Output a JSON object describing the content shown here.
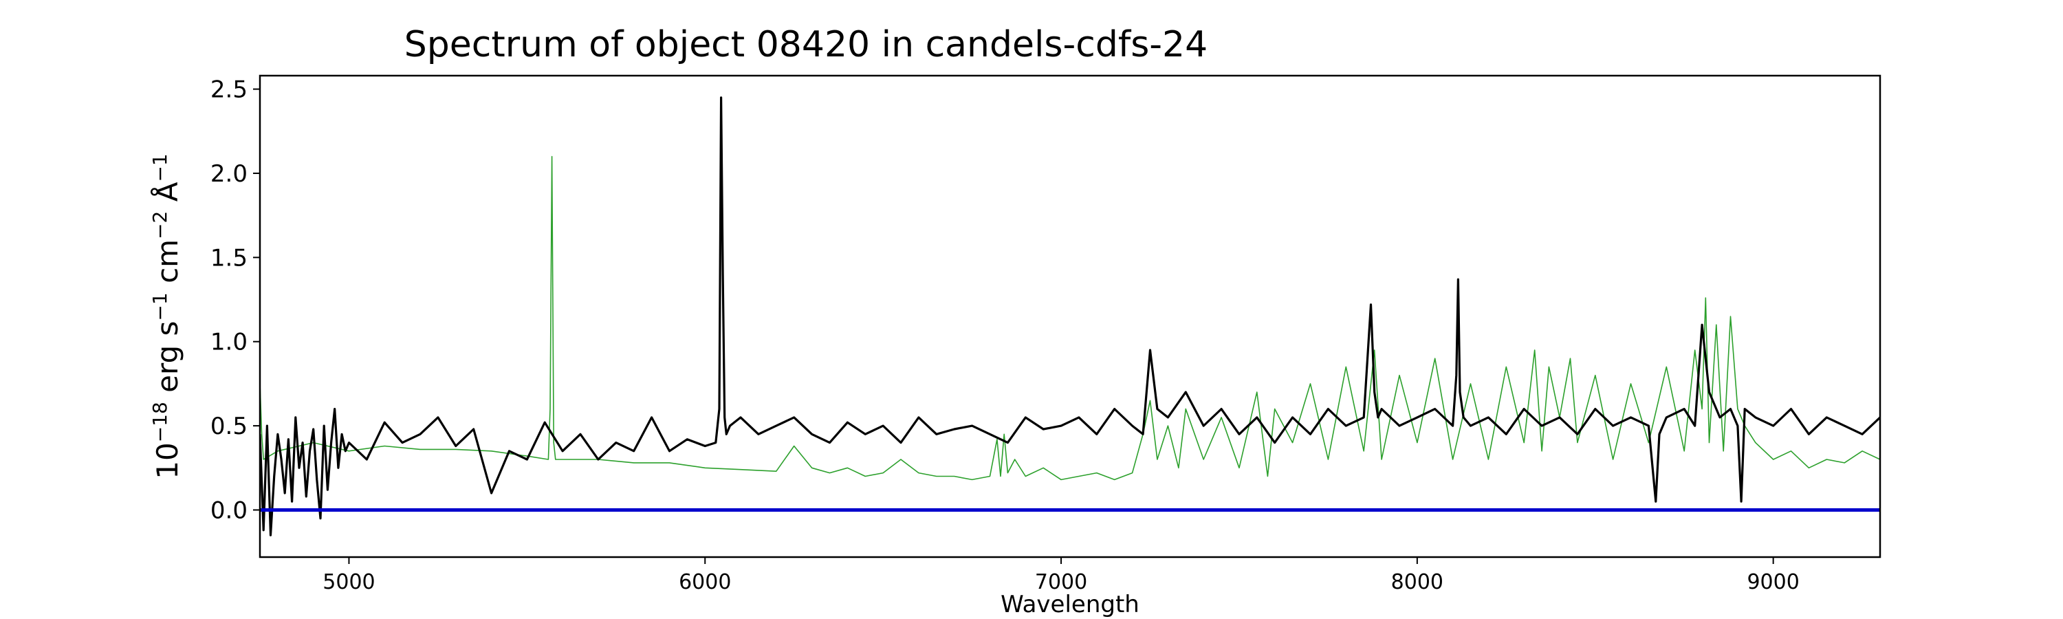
{
  "chart_data": {
    "type": "line",
    "title": "Spectrum of object 08420 in candels-cdfs-24",
    "xlabel": "Wavelength",
    "ylabel_prefix": "10",
    "ylabel_exp": "−18",
    "ylabel_units": [
      {
        "text": " erg s",
        "sup": "−1"
      },
      {
        "text": " cm",
        "sup": "−2"
      },
      {
        "text": " Å",
        "sup": "−1"
      }
    ],
    "xlim": [
      4750,
      9300
    ],
    "ylim": [
      -0.28,
      2.58
    ],
    "xticks": [
      5000,
      6000,
      7000,
      8000,
      9000
    ],
    "xtick_labels": [
      "5000",
      "6000",
      "7000",
      "8000",
      "9000"
    ],
    "yticks": [
      0.0,
      0.5,
      1.0,
      1.5,
      2.0,
      2.5
    ],
    "ytick_labels": [
      "0.0",
      "0.5",
      "1.0",
      "1.5",
      "2.0",
      "2.5"
    ],
    "grid": false,
    "series": [
      {
        "color": "#000000",
        "x": [
          4750,
          4760,
          4770,
          4780,
          4790,
          4800,
          4810,
          4820,
          4830,
          4840,
          4850,
          4860,
          4870,
          4880,
          4890,
          4900,
          4910,
          4920,
          4930,
          4940,
          4950,
          4960,
          4970,
          4980,
          4990,
          5000,
          5050,
          5100,
          5150,
          5200,
          5250,
          5300,
          5350,
          5400,
          5450,
          5500,
          5550,
          5600,
          5650,
          5700,
          5750,
          5800,
          5850,
          5900,
          5950,
          6000,
          6030,
          6040,
          6045,
          6050,
          6055,
          6060,
          6070,
          6100,
          6150,
          6200,
          6250,
          6300,
          6350,
          6400,
          6450,
          6500,
          6550,
          6600,
          6650,
          6700,
          6750,
          6800,
          6850,
          6900,
          6950,
          7000,
          7050,
          7100,
          7150,
          7200,
          7230,
          7250,
          7270,
          7300,
          7350,
          7400,
          7450,
          7500,
          7550,
          7600,
          7650,
          7700,
          7750,
          7800,
          7850,
          7870,
          7880,
          7890,
          7900,
          7950,
          8000,
          8050,
          8100,
          8110,
          8115,
          8120,
          8130,
          8150,
          8200,
          8250,
          8300,
          8350,
          8400,
          8450,
          8500,
          8550,
          8600,
          8650,
          8670,
          8680,
          8700,
          8750,
          8780,
          8800,
          8820,
          8850,
          8880,
          8900,
          8910,
          8920,
          8950,
          9000,
          9050,
          9100,
          9150,
          9200,
          9250,
          9300
        ],
        "y": [
          0.45,
          -0.12,
          0.5,
          -0.15,
          0.2,
          0.45,
          0.3,
          0.1,
          0.42,
          0.05,
          0.55,
          0.25,
          0.4,
          0.08,
          0.35,
          0.48,
          0.18,
          -0.05,
          0.5,
          0.12,
          0.4,
          0.6,
          0.25,
          0.45,
          0.35,
          0.4,
          0.3,
          0.52,
          0.4,
          0.45,
          0.55,
          0.38,
          0.48,
          0.1,
          0.35,
          0.3,
          0.52,
          0.35,
          0.45,
          0.3,
          0.4,
          0.35,
          0.55,
          0.35,
          0.42,
          0.38,
          0.4,
          0.6,
          2.45,
          1.4,
          0.55,
          0.45,
          0.5,
          0.55,
          0.45,
          0.5,
          0.55,
          0.45,
          0.4,
          0.52,
          0.45,
          0.5,
          0.4,
          0.55,
          0.45,
          0.48,
          0.5,
          0.45,
          0.4,
          0.55,
          0.48,
          0.5,
          0.55,
          0.45,
          0.6,
          0.5,
          0.45,
          0.95,
          0.6,
          0.55,
          0.7,
          0.5,
          0.6,
          0.45,
          0.55,
          0.4,
          0.55,
          0.45,
          0.6,
          0.5,
          0.55,
          1.22,
          0.7,
          0.55,
          0.6,
          0.5,
          0.55,
          0.6,
          0.5,
          0.8,
          1.37,
          0.7,
          0.55,
          0.5,
          0.55,
          0.45,
          0.6,
          0.5,
          0.55,
          0.45,
          0.6,
          0.5,
          0.55,
          0.5,
          0.05,
          0.45,
          0.55,
          0.6,
          0.5,
          1.1,
          0.7,
          0.55,
          0.6,
          0.5,
          0.05,
          0.6,
          0.55,
          0.5,
          0.6,
          0.45,
          0.55,
          0.5,
          0.45,
          0.55
        ]
      },
      {
        "color": "#2ca02c",
        "x": [
          4750,
          4755,
          4760,
          4800,
          4900,
          5000,
          5100,
          5200,
          5300,
          5400,
          5500,
          5560,
          5565,
          5570,
          5575,
          5580,
          5600,
          5700,
          5800,
          5900,
          6000,
          6100,
          6200,
          6250,
          6300,
          6350,
          6400,
          6450,
          6500,
          6550,
          6600,
          6650,
          6700,
          6750,
          6800,
          6820,
          6830,
          6840,
          6850,
          6870,
          6900,
          6950,
          7000,
          7050,
          7100,
          7150,
          7200,
          7230,
          7250,
          7270,
          7300,
          7330,
          7350,
          7400,
          7450,
          7500,
          7550,
          7580,
          7600,
          7650,
          7700,
          7750,
          7800,
          7850,
          7880,
          7900,
          7950,
          8000,
          8050,
          8100,
          8150,
          8200,
          8250,
          8300,
          8330,
          8350,
          8370,
          8400,
          8430,
          8450,
          8500,
          8550,
          8600,
          8650,
          8700,
          8750,
          8780,
          8800,
          8810,
          8820,
          8840,
          8860,
          8880,
          8900,
          8920,
          8950,
          9000,
          9050,
          9100,
          9150,
          9200,
          9250,
          9300
        ],
        "y": [
          0.75,
          0.45,
          0.3,
          0.35,
          0.4,
          0.35,
          0.38,
          0.36,
          0.36,
          0.35,
          0.32,
          0.3,
          0.6,
          2.1,
          0.4,
          0.3,
          0.3,
          0.3,
          0.28,
          0.28,
          0.25,
          0.24,
          0.23,
          0.38,
          0.25,
          0.22,
          0.25,
          0.2,
          0.22,
          0.3,
          0.22,
          0.2,
          0.2,
          0.18,
          0.2,
          0.42,
          0.2,
          0.45,
          0.22,
          0.3,
          0.2,
          0.25,
          0.18,
          0.2,
          0.22,
          0.18,
          0.22,
          0.45,
          0.65,
          0.3,
          0.5,
          0.25,
          0.6,
          0.3,
          0.55,
          0.25,
          0.7,
          0.2,
          0.6,
          0.4,
          0.75,
          0.3,
          0.85,
          0.35,
          0.95,
          0.3,
          0.8,
          0.4,
          0.9,
          0.3,
          0.75,
          0.3,
          0.85,
          0.4,
          0.95,
          0.35,
          0.85,
          0.55,
          0.9,
          0.4,
          0.8,
          0.3,
          0.75,
          0.4,
          0.85,
          0.35,
          0.95,
          0.6,
          1.26,
          0.4,
          1.1,
          0.35,
          1.15,
          0.6,
          0.5,
          0.4,
          0.3,
          0.35,
          0.25,
          0.3,
          0.28,
          0.35,
          0.3
        ]
      },
      {
        "color": "#0000cc",
        "x": [
          4750,
          9300
        ],
        "y": [
          0.0,
          0.0
        ]
      }
    ]
  }
}
